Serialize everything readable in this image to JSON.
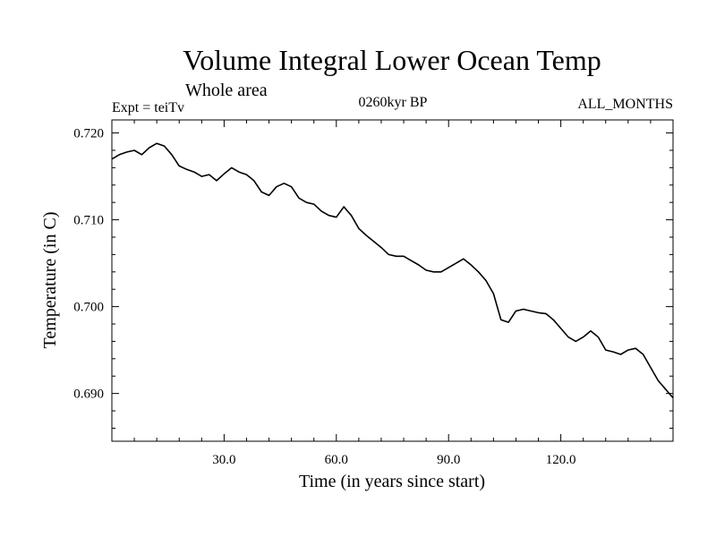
{
  "chart_data": {
    "type": "line",
    "title": "Volume Integral Lower Ocean Temp",
    "subtitle": "Whole area",
    "experiment": "Expt = teiTv",
    "period": "0260kyr BP",
    "season": "ALL_MONTHS",
    "xlabel": "Time (in years since start)",
    "ylabel": "Temperature (in C)",
    "xlim": [
      0,
      150
    ],
    "ylim": [
      0.6845,
      0.7215
    ],
    "x_ticks": [
      30,
      60,
      90,
      120
    ],
    "x_tick_labels": [
      "30.0",
      "60.0",
      "90.0",
      "120.0"
    ],
    "y_ticks": [
      0.69,
      0.7,
      0.71,
      0.72
    ],
    "y_tick_labels": [
      "0.690",
      "0.700",
      "0.710",
      "0.720"
    ],
    "grid": false,
    "series": [
      {
        "name": "Volume Integral Lower Ocean Temp",
        "x": [
          0,
          2,
          4,
          6,
          8,
          10,
          12,
          14,
          16,
          18,
          20,
          22,
          24,
          26,
          28,
          30,
          32,
          34,
          36,
          38,
          40,
          42,
          44,
          46,
          48,
          50,
          52,
          54,
          56,
          58,
          60,
          62,
          63,
          64,
          66,
          68,
          70,
          72,
          74,
          76,
          78,
          80,
          82,
          84,
          86,
          88,
          90,
          92,
          94,
          96,
          98,
          100,
          102,
          104,
          106,
          108,
          110,
          112,
          114,
          116,
          118,
          120,
          122,
          124,
          126,
          128,
          130,
          132,
          134,
          136,
          138,
          140,
          142,
          144,
          146,
          148,
          150
        ],
        "values": [
          0.717,
          0.7175,
          0.7178,
          0.718,
          0.7175,
          0.7183,
          0.7188,
          0.7185,
          0.7175,
          0.7162,
          0.7158,
          0.7155,
          0.715,
          0.7152,
          0.7145,
          0.7153,
          0.716,
          0.7155,
          0.7152,
          0.7145,
          0.7132,
          0.7128,
          0.7138,
          0.7142,
          0.7138,
          0.7125,
          0.712,
          0.7118,
          0.711,
          0.7105,
          0.7103,
          0.7115,
          0.711,
          0.7105,
          0.709,
          0.7082,
          0.7075,
          0.7068,
          0.706,
          0.7058,
          0.7058,
          0.7053,
          0.7048,
          0.7042,
          0.704,
          0.704,
          0.7045,
          0.705,
          0.7055,
          0.7048,
          0.704,
          0.703,
          0.7015,
          0.6985,
          0.6982,
          0.6995,
          0.6997,
          0.6995,
          0.6993,
          0.6992,
          0.6985,
          0.6975,
          0.6965,
          0.696,
          0.6965,
          0.6972,
          0.6965,
          0.695,
          0.6948,
          0.6945,
          0.695,
          0.6952,
          0.6945,
          0.693,
          0.6915,
          0.6905,
          0.6895
        ]
      }
    ]
  }
}
